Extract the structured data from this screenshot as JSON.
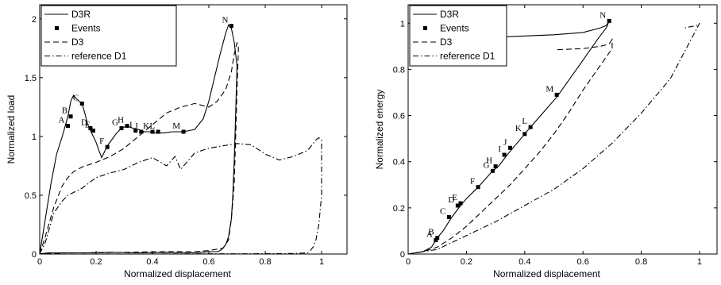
{
  "chart_data": [
    {
      "type": "line",
      "xlabel": "Normalized displacement",
      "ylabel": "Normalized load",
      "xlim": [
        0,
        1.09
      ],
      "ylim": [
        0,
        2.12
      ],
      "xticks": [
        0,
        0.2,
        0.4,
        0.6,
        0.8,
        1
      ],
      "xtick_labels": [
        "0",
        "0.2",
        "0.4",
        "0.6",
        "0.8",
        "1"
      ],
      "yticks": [
        0,
        0.5,
        1,
        1.5,
        2
      ],
      "ytick_labels": [
        "0",
        "0.5",
        "1",
        "1.5",
        "2"
      ],
      "legend_position": "top-left",
      "legend": [
        "D3R",
        "Events",
        "D3",
        "reference D1"
      ],
      "series": [
        {
          "name": "D3R",
          "style": "solid",
          "x": [
            0,
            0.02,
            0.04,
            0.06,
            0.08,
            0.1,
            0.11,
            0.12,
            0.13,
            0.14,
            0.15,
            0.16,
            0.17,
            0.18,
            0.19,
            0.2,
            0.21,
            0.22,
            0.24,
            0.27,
            0.29,
            0.31,
            0.33,
            0.35,
            0.37,
            0.39,
            0.41,
            0.44,
            0.47,
            0.51,
            0.55,
            0.58,
            0.6,
            0.62,
            0.64,
            0.66,
            0.67,
            0.68,
            0.69,
            0.7,
            0.695,
            0.69,
            0.685,
            0.68,
            0.67,
            0.66,
            0.65,
            0.64,
            0.63,
            0.62,
            0.6,
            0.55,
            0.45,
            0.35,
            0.25,
            0.15,
            0.08,
            0.03,
            0.01,
            0
          ],
          "y": [
            0,
            0.3,
            0.6,
            0.85,
            1.0,
            1.17,
            1.3,
            1.35,
            1.32,
            1.3,
            1.28,
            1.2,
            1.1,
            1.05,
            1.0,
            0.95,
            0.88,
            0.82,
            0.92,
            1.02,
            1.07,
            1.09,
            1.07,
            1.06,
            1.04,
            1.04,
            1.03,
            1.03,
            1.04,
            1.04,
            1.06,
            1.15,
            1.3,
            1.5,
            1.7,
            1.88,
            1.95,
            1.92,
            1.8,
            1.6,
            1.2,
            0.8,
            0.5,
            0.3,
            0.15,
            0.08,
            0.05,
            0.03,
            0.02,
            0.02,
            0.02,
            0.01,
            0.015,
            0.01,
            0.015,
            0.01,
            0.01,
            0.01,
            0.005,
            0
          ]
        },
        {
          "name": "D3",
          "style": "dashed",
          "x": [
            0,
            0.02,
            0.05,
            0.08,
            0.1,
            0.12,
            0.15,
            0.2,
            0.25,
            0.3,
            0.35,
            0.4,
            0.45,
            0.5,
            0.55,
            0.6,
            0.63,
            0.66,
            0.68,
            0.69,
            0.7,
            0.705,
            0.7,
            0.695,
            0.69,
            0.68,
            0.67,
            0.65,
            0.6,
            0.55,
            0.45,
            0.3,
            0.2,
            0.1,
            0.05,
            0.02,
            0
          ],
          "y": [
            0,
            0.15,
            0.4,
            0.58,
            0.65,
            0.7,
            0.74,
            0.78,
            0.83,
            0.9,
            1.0,
            1.1,
            1.2,
            1.25,
            1.28,
            1.25,
            1.3,
            1.4,
            1.55,
            1.7,
            1.8,
            1.75,
            1.4,
            1.0,
            0.6,
            0.3,
            0.12,
            0.05,
            0.03,
            0.02,
            0.02,
            0.015,
            0.01,
            0.01,
            0.005,
            0.003,
            0
          ]
        },
        {
          "name": "reference D1",
          "style": "dashdot",
          "x": [
            0,
            0.02,
            0.05,
            0.08,
            0.1,
            0.15,
            0.2,
            0.25,
            0.3,
            0.35,
            0.4,
            0.45,
            0.48,
            0.5,
            0.55,
            0.6,
            0.65,
            0.7,
            0.75,
            0.8,
            0.85,
            0.9,
            0.95,
            0.98,
            0.99,
            1.0,
            1.0,
            0.99,
            0.98,
            0.97,
            0.96,
            0.95,
            0.9,
            0.8,
            0.6,
            0.4,
            0.2,
            0
          ],
          "y": [
            0,
            0.1,
            0.35,
            0.45,
            0.5,
            0.56,
            0.65,
            0.69,
            0.72,
            0.78,
            0.82,
            0.75,
            0.83,
            0.72,
            0.86,
            0.9,
            0.92,
            0.94,
            0.93,
            0.85,
            0.8,
            0.83,
            0.88,
            0.97,
            0.99,
            0.97,
            0.5,
            0.25,
            0.12,
            0.06,
            0.03,
            0.01,
            0.005,
            0.003,
            0.002,
            0.001,
            0.001,
            0
          ]
        }
      ],
      "events": [
        {
          "label": "A",
          "x": 0.1,
          "y": 1.09
        },
        {
          "label": "B",
          "x": 0.11,
          "y": 1.17
        },
        {
          "label": "C",
          "x": 0.15,
          "y": 1.28
        },
        {
          "label": "D",
          "x": 0.18,
          "y": 1.07
        },
        {
          "label": "E",
          "x": 0.19,
          "y": 1.05
        },
        {
          "label": "F",
          "x": 0.24,
          "y": 0.91
        },
        {
          "label": "G",
          "x": 0.29,
          "y": 1.07
        },
        {
          "label": "H",
          "x": 0.31,
          "y": 1.09
        },
        {
          "label": "I",
          "x": 0.34,
          "y": 1.05
        },
        {
          "label": "J",
          "x": 0.36,
          "y": 1.04
        },
        {
          "label": "K",
          "x": 0.4,
          "y": 1.04
        },
        {
          "label": "L",
          "x": 0.42,
          "y": 1.04
        },
        {
          "label": "M",
          "x": 0.51,
          "y": 1.04
        },
        {
          "label": "N",
          "x": 0.68,
          "y": 1.94
        }
      ]
    },
    {
      "type": "line",
      "xlabel": "Normalized displacement",
      "ylabel": "Normalized energy",
      "xlim": [
        0,
        1.06
      ],
      "ylim": [
        0,
        1.08
      ],
      "xticks": [
        0,
        0.2,
        0.4,
        0.6,
        0.8,
        1
      ],
      "xtick_labels": [
        "0",
        "0.2",
        "0.4",
        "0.6",
        "0.8",
        "1"
      ],
      "yticks": [
        0,
        0.2,
        0.4,
        0.6,
        0.8,
        1
      ],
      "ytick_labels": [
        "0",
        "0.2",
        "0.4",
        "0.6",
        "0.8",
        "1"
      ],
      "legend_position": "top-left",
      "legend": [
        "D3R",
        "Events",
        "D3",
        "reference D1"
      ],
      "series": [
        {
          "name": "D3R",
          "style": "solid",
          "x": [
            0,
            0.05,
            0.08,
            0.1,
            0.12,
            0.15,
            0.18,
            0.2,
            0.24,
            0.29,
            0.31,
            0.34,
            0.36,
            0.4,
            0.42,
            0.51,
            0.6,
            0.65,
            0.68,
            0.69,
            0.68,
            0.66,
            0.6,
            0.5,
            0.4,
            0.3
          ],
          "y": [
            0,
            0.01,
            0.03,
            0.07,
            0.1,
            0.16,
            0.21,
            0.24,
            0.29,
            0.36,
            0.38,
            0.43,
            0.46,
            0.52,
            0.55,
            0.68,
            0.84,
            0.93,
            0.98,
            1.01,
            0.99,
            0.98,
            0.96,
            0.95,
            0.945,
            0.94
          ]
        },
        {
          "name": "D3",
          "style": "dashed",
          "x": [
            0,
            0.05,
            0.1,
            0.15,
            0.2,
            0.25,
            0.3,
            0.35,
            0.4,
            0.45,
            0.5,
            0.55,
            0.6,
            0.65,
            0.7,
            0.7,
            0.69,
            0.66,
            0.6,
            0.51
          ],
          "y": [
            0,
            0.01,
            0.03,
            0.07,
            0.12,
            0.18,
            0.24,
            0.3,
            0.37,
            0.44,
            0.52,
            0.61,
            0.71,
            0.8,
            0.89,
            0.93,
            0.91,
            0.9,
            0.89,
            0.885
          ]
        },
        {
          "name": "reference D1",
          "style": "dashdot",
          "x": [
            0,
            0.1,
            0.2,
            0.3,
            0.4,
            0.5,
            0.6,
            0.7,
            0.8,
            0.9,
            1.0,
            0.99,
            0.97,
            0.95
          ],
          "y": [
            0,
            0.02,
            0.08,
            0.14,
            0.21,
            0.28,
            0.37,
            0.48,
            0.61,
            0.76,
            1.0,
            0.99,
            0.985,
            0.98
          ]
        }
      ],
      "events": [
        {
          "label": "A",
          "x": 0.095,
          "y": 0.06
        },
        {
          "label": "B",
          "x": 0.1,
          "y": 0.07
        },
        {
          "label": "C",
          "x": 0.14,
          "y": 0.16
        },
        {
          "label": "D",
          "x": 0.17,
          "y": 0.21
        },
        {
          "label": "E",
          "x": 0.18,
          "y": 0.22
        },
        {
          "label": "F",
          "x": 0.24,
          "y": 0.29
        },
        {
          "label": "G",
          "x": 0.29,
          "y": 0.36
        },
        {
          "label": "H",
          "x": 0.3,
          "y": 0.38
        },
        {
          "label": "I",
          "x": 0.33,
          "y": 0.43
        },
        {
          "label": "J",
          "x": 0.35,
          "y": 0.46
        },
        {
          "label": "K",
          "x": 0.4,
          "y": 0.52
        },
        {
          "label": "L",
          "x": 0.42,
          "y": 0.55
        },
        {
          "label": "M",
          "x": 0.51,
          "y": 0.69
        },
        {
          "label": "N",
          "x": 0.69,
          "y": 1.01
        }
      ]
    }
  ]
}
